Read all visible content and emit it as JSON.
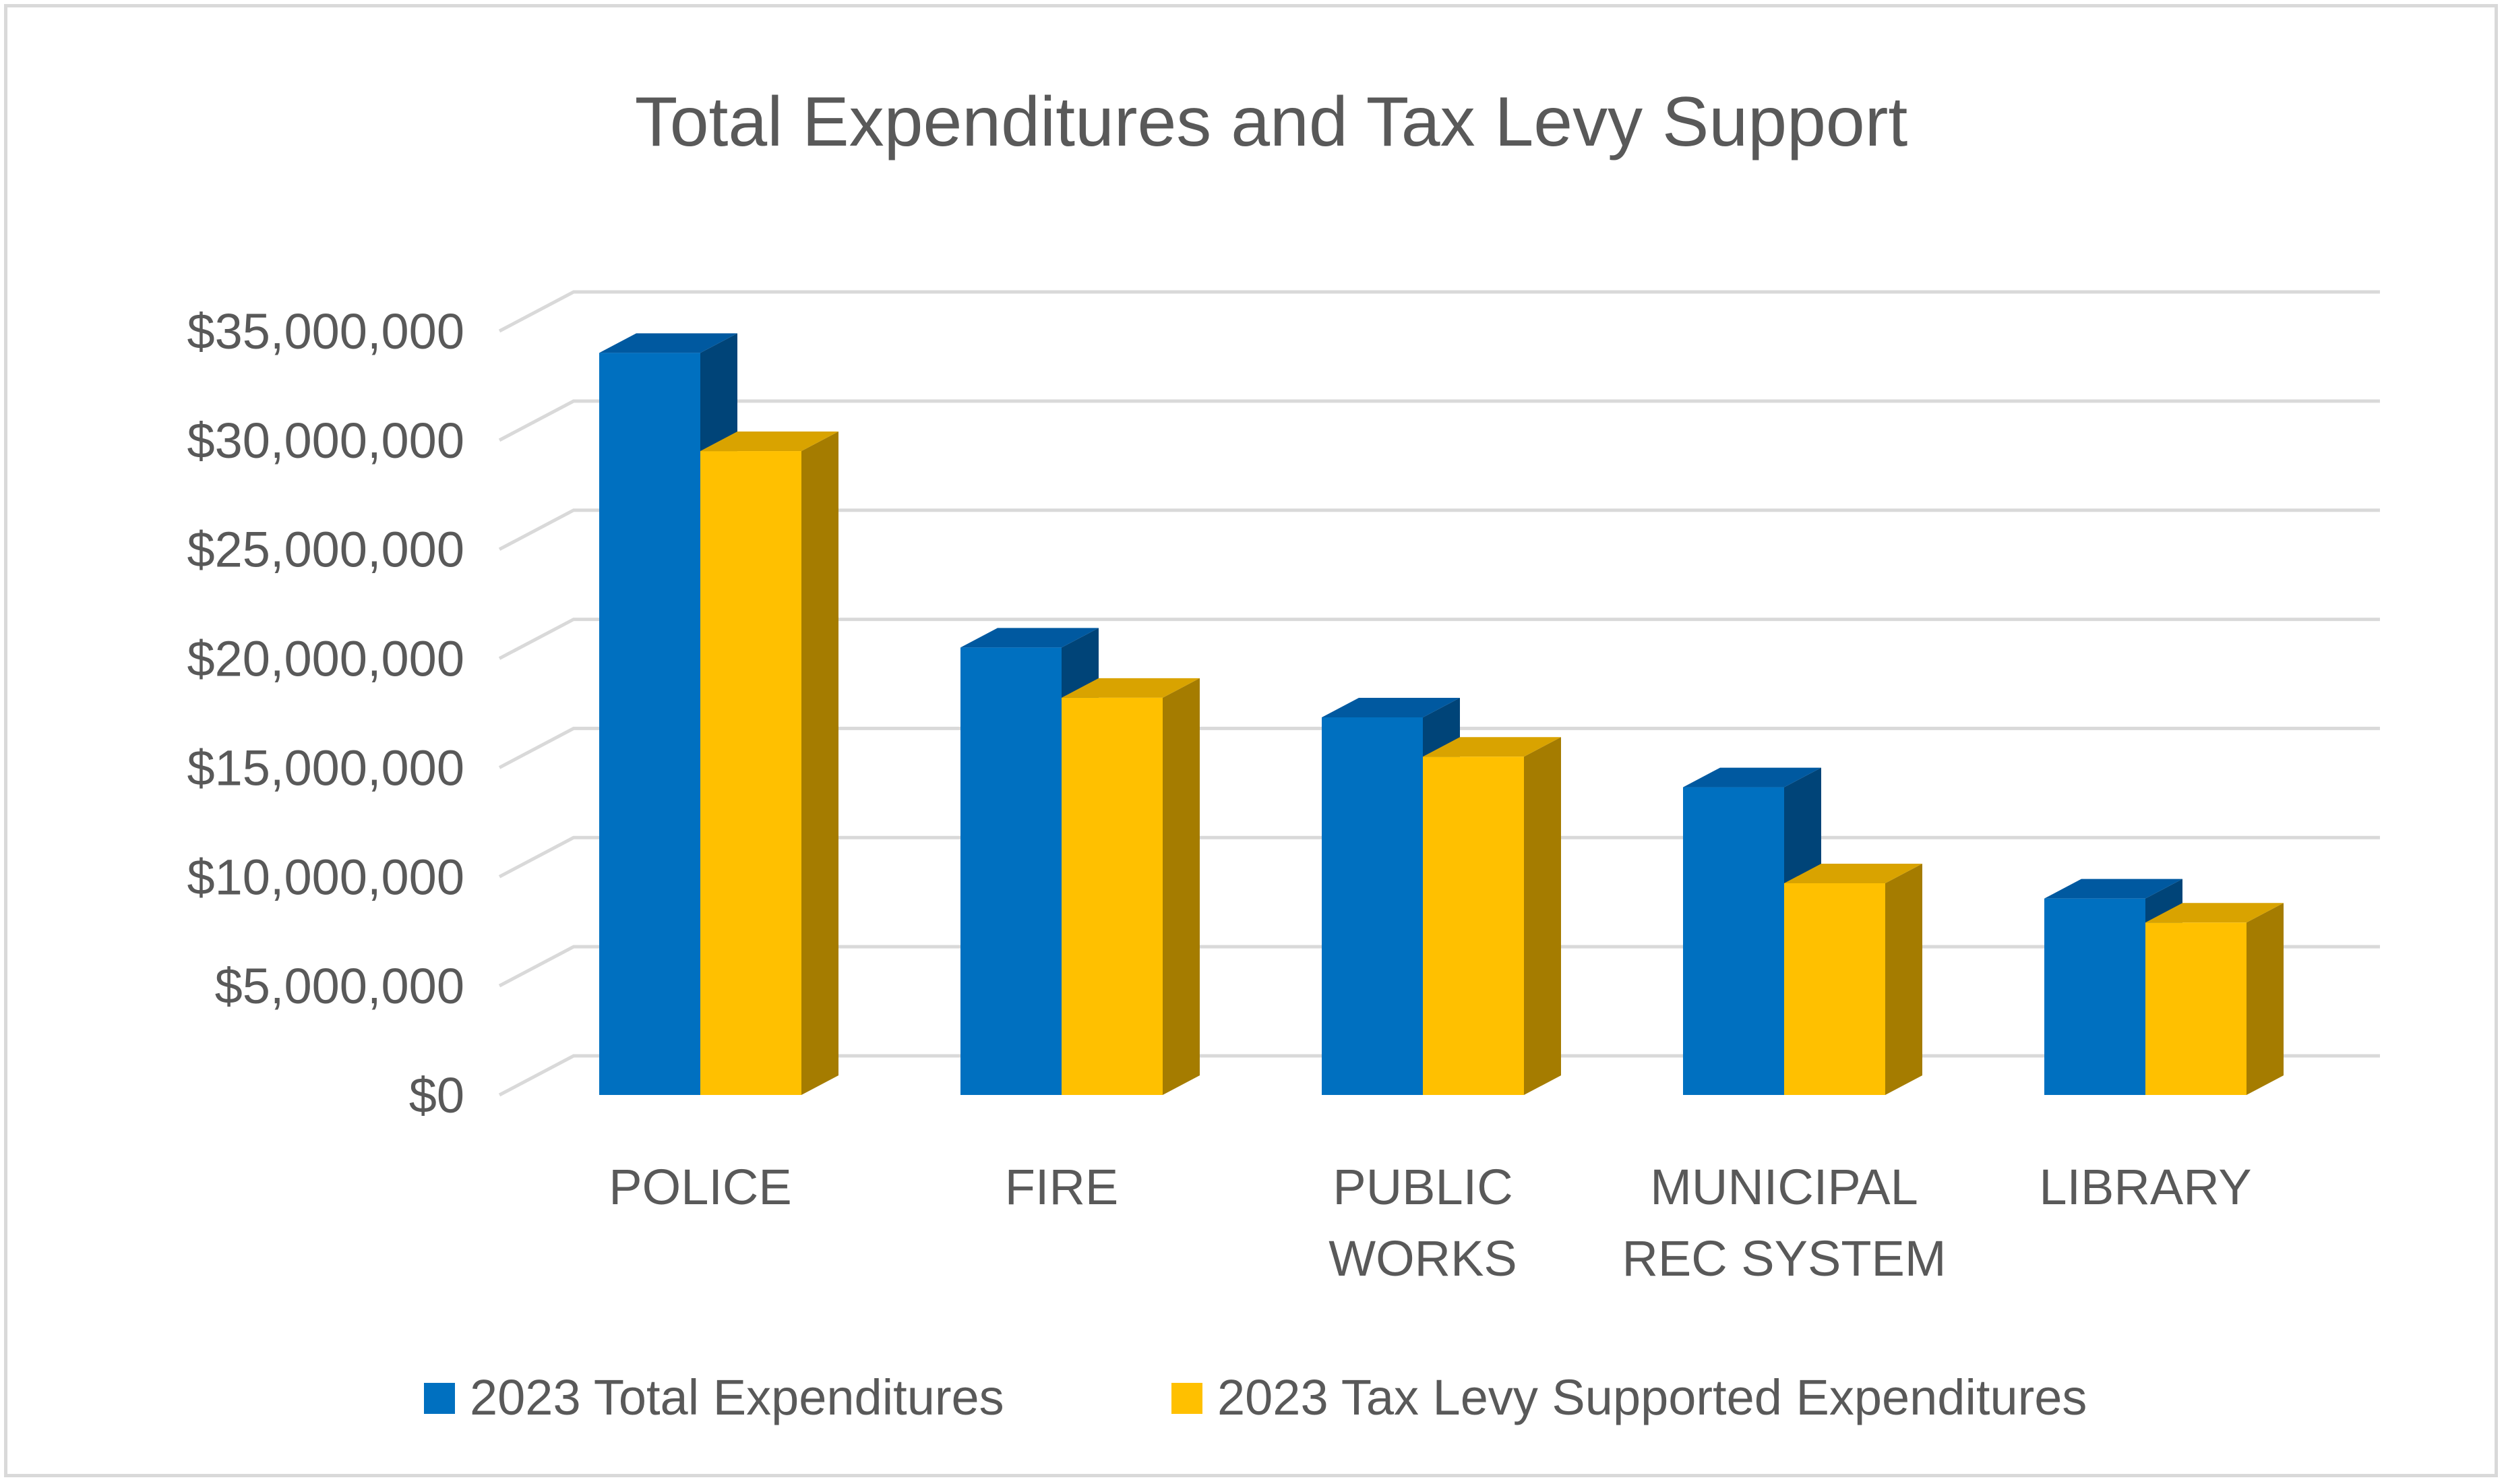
{
  "chart_data": {
    "type": "bar",
    "style": "3d-clustered-column",
    "title": "Total Expenditures and Tax Levy Support",
    "categories": [
      [
        "POLICE"
      ],
      [
        "FIRE"
      ],
      [
        "PUBLIC",
        "WORKS"
      ],
      [
        "MUNICIPAL",
        "REC SYSTEM"
      ],
      [
        "LIBRARY"
      ]
    ],
    "series": [
      {
        "name": "2023 Total Expenditures",
        "values": [
          34000000,
          20500000,
          17300000,
          14100000,
          9000000
        ]
      },
      {
        "name": "2023 Tax Levy Supported Expenditures",
        "values": [
          29500000,
          18200000,
          15500000,
          9700000,
          7900000
        ]
      }
    ],
    "xlabel": "",
    "ylabel": "",
    "ylim": [
      0,
      35000000
    ],
    "yticks": [
      "$0",
      "$5,000,000",
      "$10,000,000",
      "$15,000,000",
      "$20,000,000",
      "$25,000,000",
      "$30,000,000",
      "$35,000,000"
    ],
    "grid": true,
    "legend_position": "bottom",
    "colors": {
      "series_front": [
        "#0070c0",
        "#ffc000"
      ],
      "series_side": [
        "#004478",
        "#a57c00"
      ],
      "series_top": [
        "#0059a0",
        "#d9a300"
      ],
      "grid": "#d9d9d9",
      "text": "#595959"
    }
  }
}
